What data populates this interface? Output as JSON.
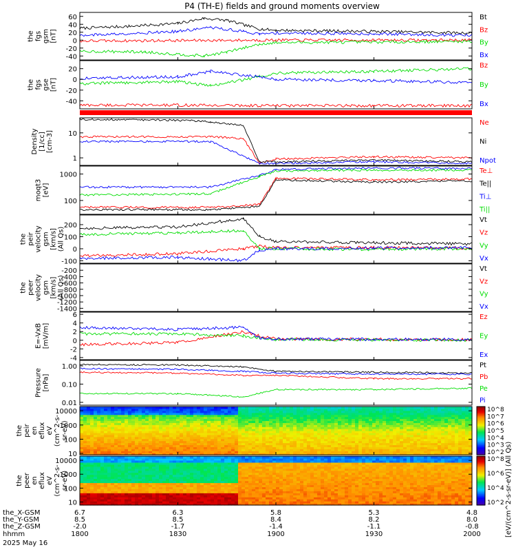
{
  "title": "P4 (TH-E) fields and ground moments overview",
  "x_axis": {
    "rows": [
      {
        "label": "the_X-GSM",
        "values": [
          "6.7",
          "6.3",
          "5.8",
          "5.3",
          "4.8"
        ]
      },
      {
        "label": "the_Y-GSM",
        "values": [
          "8.5",
          "8.5",
          "8.4",
          "8.2",
          "8.0"
        ]
      },
      {
        "label": "the_Z-GSM",
        "values": [
          "-2.0",
          "-1.7",
          "-1.4",
          "-1.1",
          "-0.8"
        ]
      },
      {
        "label": "hhmm",
        "values": [
          "1800",
          "1830",
          "1900",
          "1930",
          "2000"
        ]
      }
    ],
    "date": "2025 May 16",
    "range": [
      1800,
      2000
    ]
  },
  "colorbar_label": "[eV/(cm^2-s-sr-eV)] (All Qs)",
  "chart_data": [
    {
      "type": "line",
      "ylabel": [
        "the",
        "fgs",
        "gsm",
        "[nT]"
      ],
      "ylim": [
        -50,
        70
      ],
      "ticks": [
        60,
        40,
        20,
        0,
        -20,
        -40
      ],
      "series": [
        {
          "name": "Bt",
          "color": "#000000",
          "points": [
            [
              1800,
              30
            ],
            [
              1815,
              35
            ],
            [
              1830,
              42
            ],
            [
              1838,
              55
            ],
            [
              1845,
              50
            ],
            [
              1855,
              28
            ],
            [
              1900,
              25
            ],
            [
              1930,
              22
            ],
            [
              2000,
              18
            ]
          ]
        },
        {
          "name": "Bz",
          "color": "#ff0000",
          "points": [
            [
              1800,
              -2
            ],
            [
              1830,
              -1
            ],
            [
              1855,
              0
            ],
            [
              1900,
              0
            ],
            [
              1930,
              0
            ],
            [
              2000,
              0
            ]
          ]
        },
        {
          "name": "By",
          "color": "#00dd00",
          "points": [
            [
              1800,
              -28
            ],
            [
              1820,
              -30
            ],
            [
              1838,
              -40
            ],
            [
              1845,
              -30
            ],
            [
              1855,
              -10
            ],
            [
              1900,
              -6
            ],
            [
              1930,
              -5
            ],
            [
              2000,
              -3
            ]
          ]
        },
        {
          "name": "Bx",
          "color": "#0000ff",
          "points": [
            [
              1800,
              12
            ],
            [
              1830,
              22
            ],
            [
              1840,
              32
            ],
            [
              1850,
              22
            ],
            [
              1855,
              15
            ],
            [
              1900,
              18
            ],
            [
              1930,
              16
            ],
            [
              2000,
              12
            ]
          ]
        }
      ]
    },
    {
      "type": "line",
      "ylabel": [
        "the",
        "fgs",
        "gse",
        "[nT]"
      ],
      "ylim": [
        -55,
        35
      ],
      "ticks": [
        20,
        0,
        -20,
        -40
      ],
      "series": [
        {
          "name": "Bz",
          "color": "#ff0000",
          "points": [
            [
              1800,
              -48
            ],
            [
              1830,
              -48
            ],
            [
              1900,
              -49
            ],
            [
              1930,
              -49
            ],
            [
              2000,
              -49
            ]
          ]
        },
        {
          "name": "By",
          "color": "#00dd00",
          "points": [
            [
              1800,
              -8
            ],
            [
              1830,
              -4
            ],
            [
              1840,
              -12
            ],
            [
              1855,
              5
            ],
            [
              1900,
              12
            ],
            [
              1930,
              15
            ],
            [
              2000,
              20
            ]
          ]
        },
        {
          "name": "Bx",
          "color": "#0000ff",
          "points": [
            [
              1800,
              2
            ],
            [
              1830,
              5
            ],
            [
              1840,
              15
            ],
            [
              1855,
              5
            ],
            [
              1900,
              0
            ],
            [
              1930,
              -2
            ],
            [
              2000,
              -6
            ]
          ]
        }
      ]
    },
    {
      "type": "line",
      "log": true,
      "ylabel": [
        "Density",
        "[1/cc]",
        "[cm-3]"
      ],
      "ylim": [
        0.5,
        40
      ],
      "ticks": [
        10,
        1
      ],
      "series": [
        {
          "name": "Ne",
          "color": "#ff0000",
          "points": [
            [
              1800,
              7
            ],
            [
              1840,
              7
            ],
            [
              1850,
              6
            ],
            [
              1855,
              0.6
            ],
            [
              1900,
              0.9
            ],
            [
              1930,
              1.1
            ],
            [
              2000,
              1.0
            ]
          ]
        },
        {
          "name": "Ni",
          "color": "#000000",
          "points": [
            [
              1800,
              35
            ],
            [
              1830,
              32
            ],
            [
              1840,
              28
            ],
            [
              1850,
              20
            ],
            [
              1855,
              0.7
            ],
            [
              1900,
              0.7
            ],
            [
              1930,
              0.8
            ],
            [
              2000,
              0.7
            ]
          ]
        },
        {
          "name": "Npot",
          "color": "#0000ff",
          "points": [
            [
              1800,
              4.5
            ],
            [
              1840,
              4.5
            ],
            [
              1855,
              0.6
            ],
            [
              1900,
              0.6
            ],
            [
              1930,
              0.7
            ],
            [
              2000,
              0.6
            ]
          ]
        }
      ]
    },
    {
      "type": "line",
      "log": true,
      "ylabel": [
        "moqt3",
        "[eV]"
      ],
      "ylim": [
        30,
        2000
      ],
      "ticks": [
        1000,
        100
      ],
      "tick_labels": [
        "1000",
        "100"
      ],
      "series": [
        {
          "name": "Te⊥",
          "color": "#ff0000",
          "points": [
            [
              1800,
              55
            ],
            [
              1840,
              55
            ],
            [
              1855,
              70
            ],
            [
              1900,
              700
            ],
            [
              1930,
              600
            ],
            [
              2000,
              650
            ]
          ]
        },
        {
          "name": "Te||",
          "color": "#000000",
          "points": [
            [
              1800,
              45
            ],
            [
              1840,
              45
            ],
            [
              1855,
              60
            ],
            [
              1900,
              600
            ],
            [
              1930,
              500
            ],
            [
              2000,
              550
            ]
          ]
        },
        {
          "name": "Ti⊥",
          "color": "#0000ff",
          "points": [
            [
              1800,
              320
            ],
            [
              1840,
              320
            ],
            [
              1855,
              900
            ],
            [
              1900,
              1500
            ],
            [
              1930,
              1700
            ],
            [
              2000,
              1600
            ]
          ]
        },
        {
          "name": "Ti||",
          "color": "#00dd00",
          "points": [
            [
              1800,
              160
            ],
            [
              1840,
              180
            ],
            [
              1855,
              800
            ],
            [
              1900,
              1300
            ],
            [
              1930,
              1400
            ],
            [
              2000,
              1400
            ]
          ]
        }
      ]
    },
    {
      "type": "line",
      "ylabel": [
        "the",
        "peir",
        "velocity",
        "gsm",
        "[km/s]",
        "(All Qs)"
      ],
      "ylim": [
        -120,
        280
      ],
      "ticks": [
        200,
        100,
        0,
        -100
      ],
      "series": [
        {
          "name": "Vt",
          "color": "#000000",
          "points": [
            [
              1800,
              170
            ],
            [
              1830,
              180
            ],
            [
              1850,
              250
            ],
            [
              1855,
              100
            ],
            [
              1900,
              60
            ],
            [
              1930,
              50
            ],
            [
              2000,
              40
            ]
          ]
        },
        {
          "name": "Vz",
          "color": "#ff0000",
          "points": [
            [
              1800,
              -60
            ],
            [
              1830,
              -40
            ],
            [
              1850,
              0
            ],
            [
              1855,
              20
            ],
            [
              1900,
              10
            ],
            [
              1930,
              10
            ],
            [
              2000,
              5
            ]
          ]
        },
        {
          "name": "Vy",
          "color": "#00dd00",
          "points": [
            [
              1800,
              120
            ],
            [
              1830,
              130
            ],
            [
              1850,
              150
            ],
            [
              1855,
              0
            ],
            [
              1900,
              0
            ],
            [
              1930,
              -5
            ],
            [
              2000,
              0
            ]
          ]
        },
        {
          "name": "Vx",
          "color": "#0000ff",
          "points": [
            [
              1800,
              -80
            ],
            [
              1830,
              -70
            ],
            [
              1850,
              -100
            ],
            [
              1855,
              -10
            ],
            [
              1900,
              0
            ],
            [
              1930,
              5
            ],
            [
              2000,
              10
            ]
          ]
        }
      ]
    },
    {
      "type": "line",
      "ylabel": [
        "the",
        "peer",
        "velocity",
        "gsm",
        "[km/s]",
        "(All Qs)"
      ],
      "ylim": [
        -1500,
        0
      ],
      "ticks": [
        -200,
        -400,
        -600,
        -800,
        -1000,
        -1200,
        -1400
      ],
      "series": [
        {
          "name": "Vt",
          "color": "#000000",
          "points": []
        },
        {
          "name": "Vz",
          "color": "#ff0000",
          "points": []
        },
        {
          "name": "Vy",
          "color": "#00dd00",
          "points": []
        },
        {
          "name": "Vx",
          "color": "#0000ff",
          "points": []
        }
      ]
    },
    {
      "type": "line",
      "ylabel": [
        "E=-VxB",
        "[mV/m]"
      ],
      "ylim": [
        -4.5,
        6.5
      ],
      "ticks": [
        6,
        4,
        2,
        0,
        -2,
        -4
      ],
      "series": [
        {
          "name": "Ez",
          "color": "#ff0000",
          "points": [
            [
              1800,
              -1
            ],
            [
              1830,
              -0.5
            ],
            [
              1850,
              2
            ],
            [
              1855,
              1
            ],
            [
              1900,
              0.3
            ],
            [
              1930,
              0.2
            ],
            [
              2000,
              0.1
            ]
          ]
        },
        {
          "name": "Ey",
          "color": "#00dd00",
          "points": [
            [
              1800,
              1.5
            ],
            [
              1830,
              1.5
            ],
            [
              1850,
              1
            ],
            [
              1855,
              0.5
            ],
            [
              1900,
              0.2
            ],
            [
              1930,
              0.1
            ],
            [
              2000,
              0
            ]
          ]
        },
        {
          "name": "Ex",
          "color": "#0000ff",
          "points": [
            [
              1800,
              3
            ],
            [
              1830,
              2.5
            ],
            [
              1850,
              3
            ],
            [
              1855,
              0.5
            ],
            [
              1900,
              0.3
            ],
            [
              1930,
              0.2
            ],
            [
              2000,
              0.2
            ]
          ]
        }
      ]
    },
    {
      "type": "line",
      "log": true,
      "ylabel": [
        "Pressure",
        "[nPa]"
      ],
      "ylim": [
        0.007,
        2
      ],
      "ticks": [
        1,
        0.1,
        0.01
      ],
      "tick_labels": [
        "1.00",
        "0.10",
        "0.01"
      ],
      "series": [
        {
          "name": "Pt",
          "color": "#000000",
          "points": [
            [
              1800,
              1.2
            ],
            [
              1830,
              1.1
            ],
            [
              1850,
              0.9
            ],
            [
              1900,
              0.5
            ],
            [
              1930,
              0.45
            ],
            [
              2000,
              0.4
            ]
          ]
        },
        {
          "name": "Pb",
          "color": "#ff0000",
          "points": [
            [
              1800,
              0.45
            ],
            [
              1830,
              0.4
            ],
            [
              1850,
              0.3
            ],
            [
              1900,
              0.3
            ],
            [
              1930,
              0.2
            ],
            [
              2000,
              0.2
            ]
          ]
        },
        {
          "name": "Pe",
          "color": "#00dd00",
          "points": [
            [
              1800,
              0.03
            ],
            [
              1830,
              0.03
            ],
            [
              1850,
              0.02
            ],
            [
              1900,
              0.05
            ],
            [
              1930,
              0.05
            ],
            [
              2000,
              0.06
            ]
          ]
        },
        {
          "name": "Pi",
          "color": "#0000ff",
          "points": [
            [
              1800,
              0.7
            ],
            [
              1830,
              0.65
            ],
            [
              1850,
              0.5
            ],
            [
              1900,
              0.4
            ],
            [
              1930,
              0.35
            ],
            [
              2000,
              0.35
            ]
          ]
        }
      ]
    },
    {
      "type": "heatmap",
      "log": true,
      "ylabel": [
        "the",
        "peir",
        "en",
        "eflux",
        "eV",
        "(cm^2-s-",
        "sr-eV)"
      ],
      "ylim": [
        8,
        20000
      ],
      "ticks": [
        10000,
        1000,
        100,
        10
      ],
      "tick_labels": [
        "10000",
        "1000",
        "100",
        "10"
      ],
      "colorbar": {
        "labels": [
          "10^8",
          "10^7",
          "10^6",
          "10^5",
          "10^4",
          "10^3",
          "10^2"
        ],
        "range": [
          2,
          8
        ]
      }
    },
    {
      "type": "heatmap",
      "log": true,
      "ylabel": [
        "the",
        "peer",
        "en",
        "eflux",
        "eV",
        "(cm^2-s-",
        "sr-eV)"
      ],
      "ylim": [
        6,
        20000
      ],
      "ticks": [
        10000,
        1000,
        100,
        10
      ],
      "tick_labels": [
        "10000",
        "1000",
        "100",
        "10"
      ],
      "colorbar": {
        "labels": [
          "10^8",
          "10^6",
          "10^4",
          "10^2"
        ],
        "range": [
          1.5,
          8
        ]
      }
    }
  ]
}
